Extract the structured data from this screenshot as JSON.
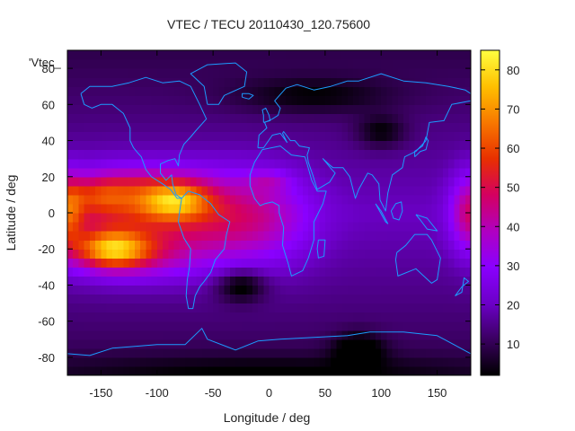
{
  "chart_data": {
    "type": "heatmap",
    "title": "VTEC / TECU 20110430_120.75600",
    "series_label": "'Vtec_",
    "xlabel": "Longitude / deg",
    "ylabel": "Latitude / deg",
    "xlim": [
      -180,
      180
    ],
    "ylim": [
      -90,
      90
    ],
    "xticks": [
      -150,
      -100,
      -50,
      0,
      50,
      100,
      150
    ],
    "yticks": [
      -80,
      -60,
      -40,
      -20,
      0,
      20,
      40,
      60,
      80
    ],
    "xtick_labels": [
      "-150",
      "-100",
      "-50",
      "0",
      "50",
      "100",
      "150"
    ],
    "ytick_labels": [
      "-80",
      "-60",
      "-40",
      "-20",
      "0",
      "20",
      "40",
      "60",
      "80"
    ],
    "colorbar": {
      "range": [
        2,
        85
      ],
      "ticks": [
        10,
        20,
        30,
        40,
        50,
        60,
        70,
        80
      ],
      "tick_labels": [
        "10",
        "20",
        "30",
        "40",
        "50",
        "60",
        "70",
        "80"
      ],
      "palette": [
        "#000000",
        "#3a0060",
        "#6c00c8",
        "#8a00ff",
        "#b000c0",
        "#d40060",
        "#e83000",
        "#f87800",
        "#ffc000",
        "#ffff40"
      ]
    },
    "features": {
      "background_level": 20,
      "equatorial_anomaly_peaks": [
        {
          "lon": -140,
          "lat": -20,
          "value": 82
        },
        {
          "lon": -85,
          "lat": 7,
          "value": 80
        },
        {
          "lon": -150,
          "lat": 10,
          "value": 65
        }
      ],
      "high_tec_band": {
        "lon_range": [
          -180,
          20
        ],
        "lat_range": [
          -35,
          30
        ]
      },
      "secondary_peak": {
        "lon": 180,
        "lat": 0,
        "value": 48
      },
      "lows": [
        {
          "lon": -25,
          "lat": -40,
          "value": 3
        },
        {
          "lon": 80,
          "lat": -75,
          "value": 5
        },
        {
          "lon": 100,
          "lat": 45,
          "value": 8
        }
      ]
    },
    "overlay": "coastlines",
    "grid": false,
    "legend": "top-left"
  }
}
